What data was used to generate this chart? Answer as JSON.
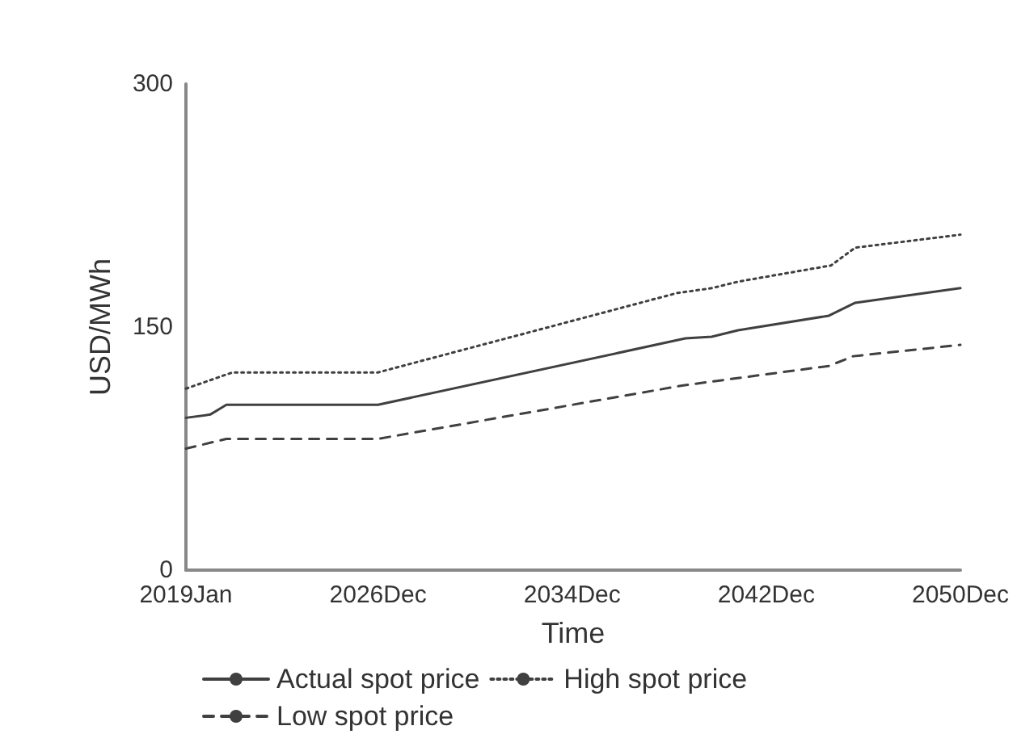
{
  "chart_data": {
    "type": "line",
    "xlabel": "Time",
    "ylabel": "USD/MWh",
    "xlim": [
      "2019-01",
      "2050-12"
    ],
    "xticks": [
      {
        "value": "2019-01",
        "label": "2019Jan"
      },
      {
        "value": "2026-12",
        "label": "2026Dec"
      },
      {
        "value": "2034-12",
        "label": "2034Dec"
      },
      {
        "value": "2042-12",
        "label": "2042Dec"
      },
      {
        "value": "2050-12",
        "label": "2050Dec"
      }
    ],
    "ylim": [
      0,
      300
    ],
    "yticks": [
      0,
      150,
      300
    ],
    "grid": false,
    "legend": "bottom",
    "marker": "none",
    "series": [
      {
        "name": "Actual spot price",
        "color": "#404040",
        "line_style": "solid",
        "x": [
          "2019-01",
          "2020-01",
          "2020-09",
          "2026-12",
          "2039-08",
          "2040-09",
          "2041-10",
          "2045-07",
          "2046-08",
          "2050-12"
        ],
        "values": [
          94,
          96,
          102,
          102,
          143,
          144,
          148,
          157,
          165,
          174
        ]
      },
      {
        "name": "High spot price",
        "color": "#404040",
        "line_style": "dotted",
        "x": [
          "2019-01",
          "2020-12",
          "2026-12",
          "2039-04",
          "2040-09",
          "2041-10",
          "2045-08",
          "2046-08",
          "2050-12"
        ],
        "values": [
          112,
          122,
          122,
          171,
          174,
          178,
          188,
          199,
          207
        ]
      },
      {
        "name": "Low spot price",
        "color": "#404040",
        "line_style": "dashed",
        "x": [
          "2019-01",
          "2020-09",
          "2026-12",
          "2039-07",
          "2045-07",
          "2046-07",
          "2050-12"
        ],
        "values": [
          75,
          81,
          81,
          114,
          126,
          132,
          139
        ]
      }
    ]
  }
}
